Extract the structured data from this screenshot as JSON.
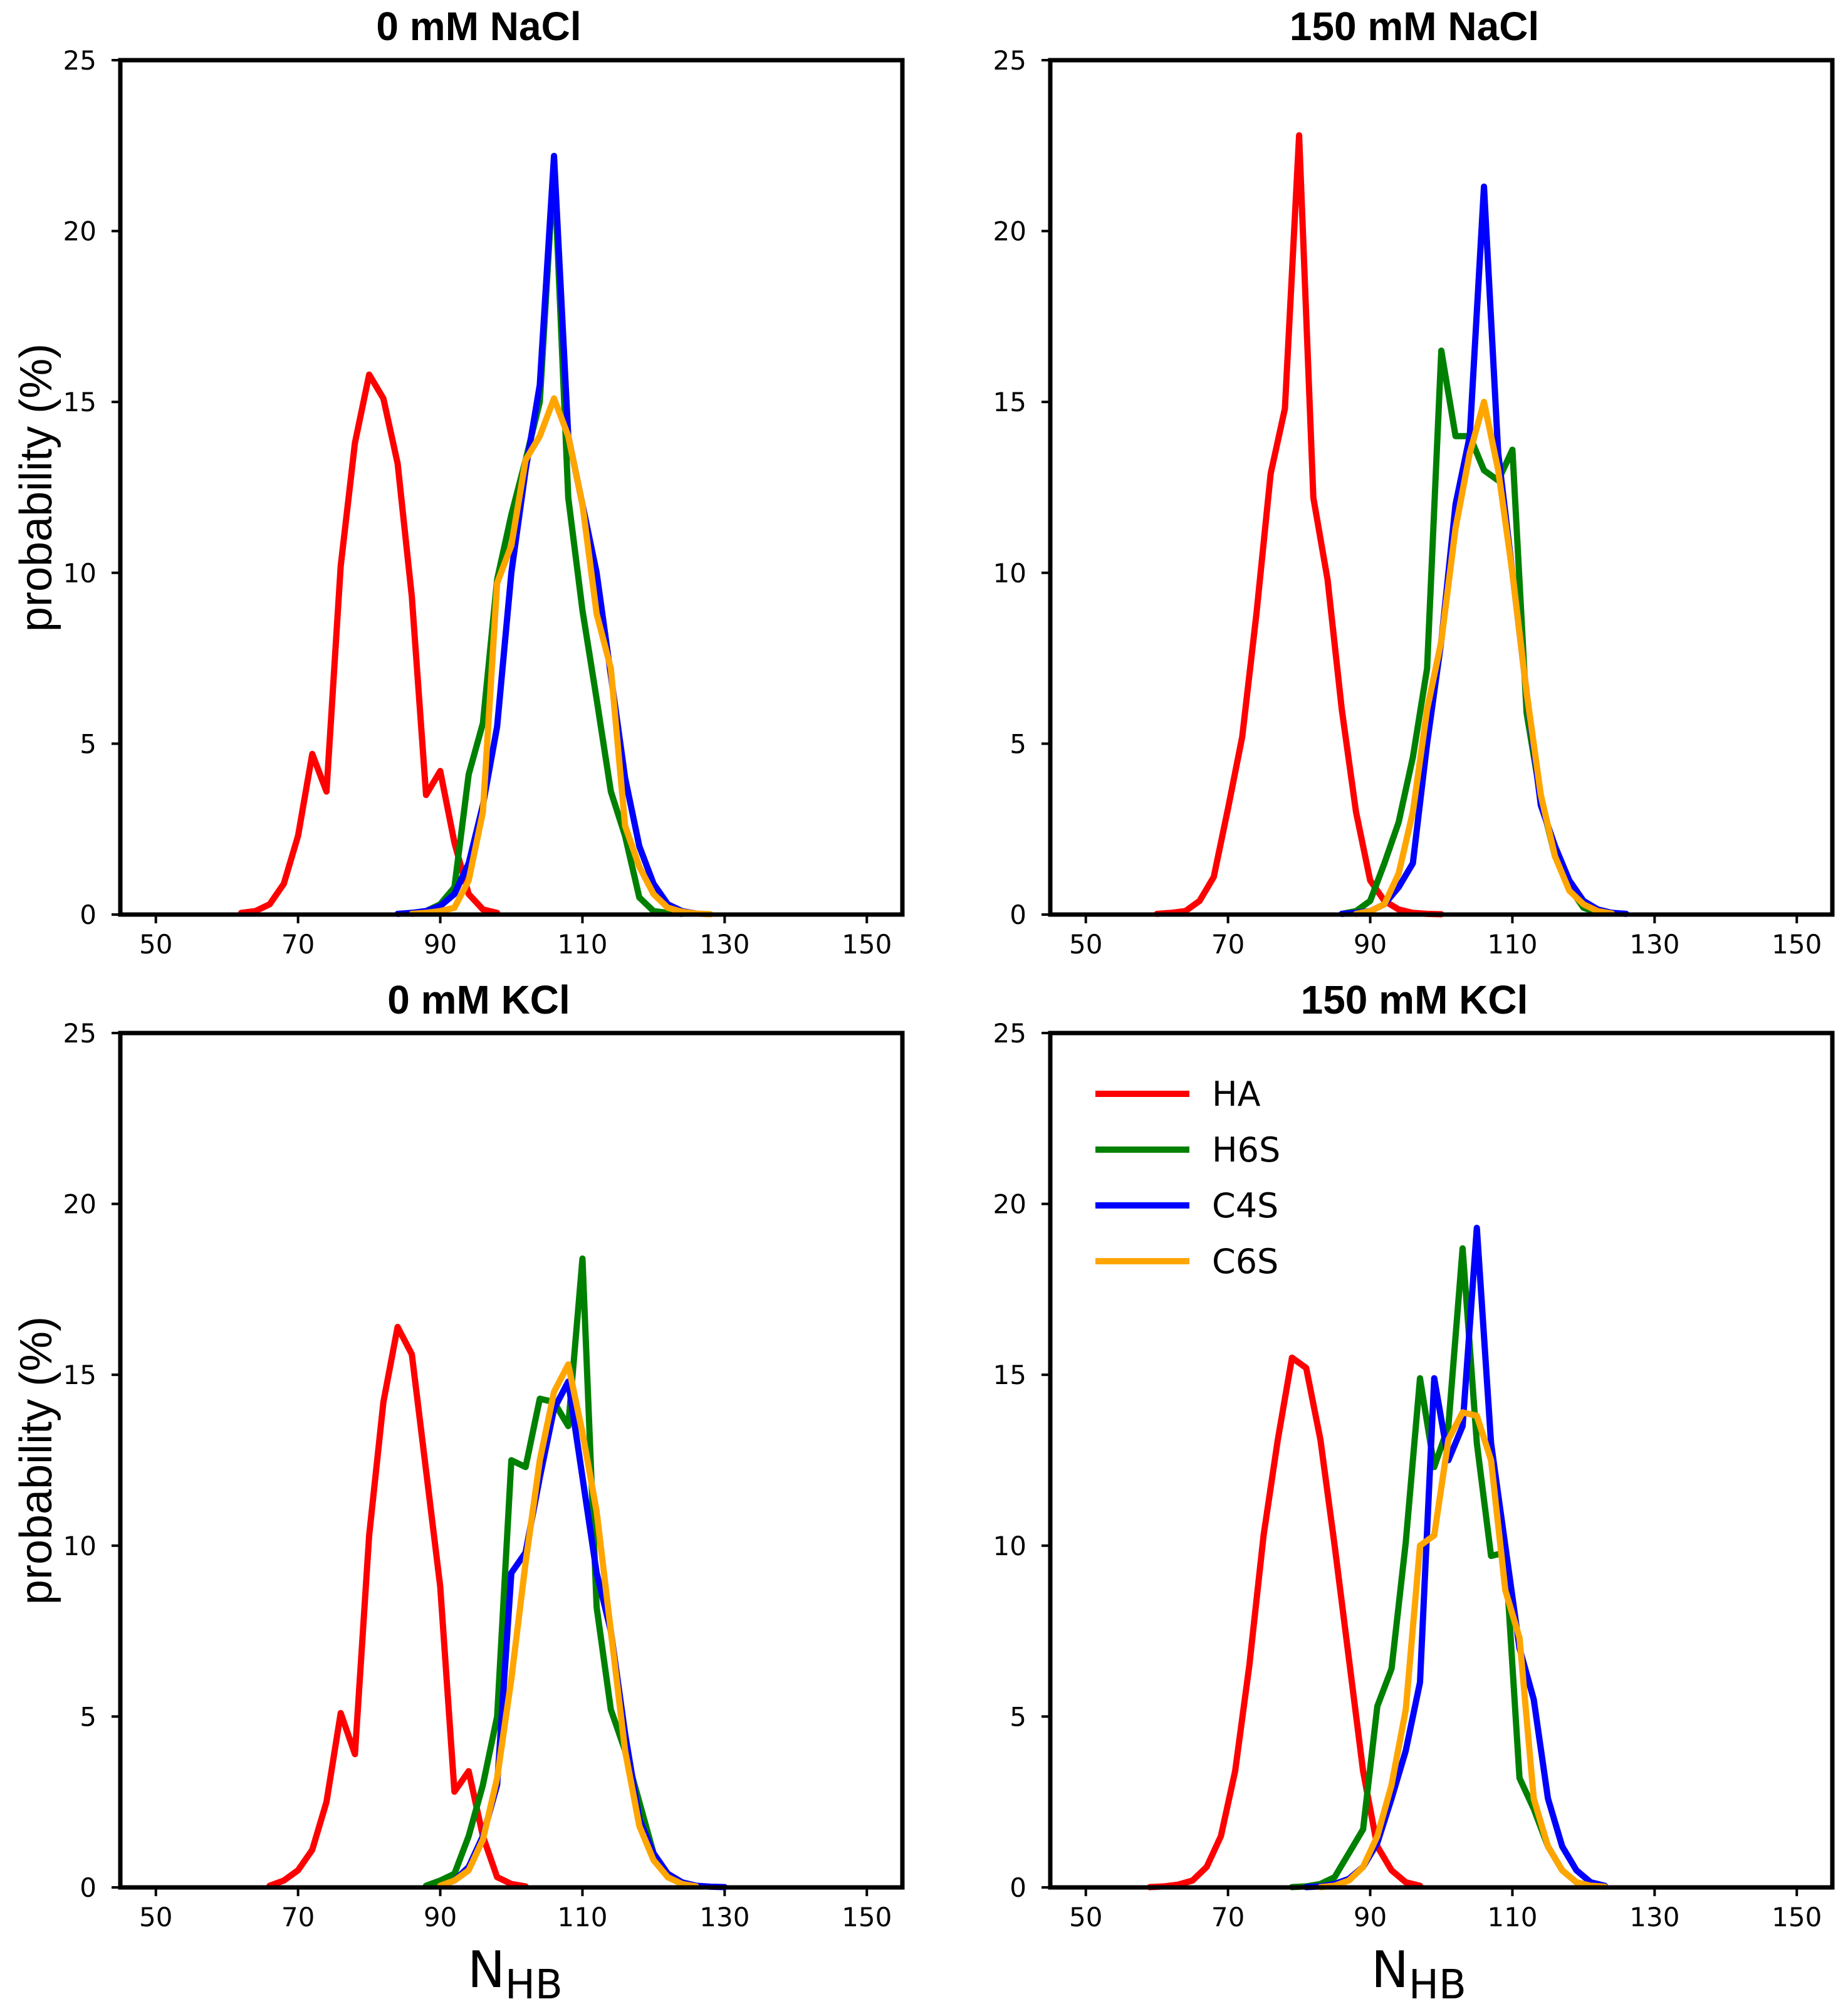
{
  "chart_data": [
    {
      "type": "line",
      "title": "0 mM NaCl",
      "xlabel": "",
      "ylabel": "probability (%)",
      "xlim": [
        45,
        155
      ],
      "ylim": [
        0,
        25
      ],
      "xticks": [
        "50",
        "70",
        "90",
        "110",
        "130",
        "150"
      ],
      "yticks": [
        "0",
        "5",
        "10",
        "15",
        "20",
        "25"
      ],
      "series": [
        {
          "name": "HA",
          "color": "#ff0000",
          "x": [
            62,
            64,
            66,
            68,
            70,
            72,
            74,
            76,
            78,
            80,
            82,
            84,
            86,
            88,
            90,
            92,
            94,
            96,
            98
          ],
          "y": [
            0.05,
            0.1,
            0.3,
            0.9,
            2.3,
            4.7,
            3.6,
            10.2,
            13.8,
            15.8,
            15.1,
            13.2,
            9.3,
            3.5,
            4.2,
            2.1,
            0.6,
            0.15,
            0.05
          ]
        },
        {
          "name": "H6S",
          "color": "#008000",
          "x": [
            86,
            88,
            90,
            92,
            94,
            96,
            98,
            100,
            102,
            104,
            106,
            108,
            110,
            112,
            114,
            116,
            118,
            120,
            122,
            124
          ],
          "y": [
            0.05,
            0.1,
            0.3,
            0.8,
            4.1,
            5.6,
            9.8,
            11.7,
            13.3,
            15.0,
            22.0,
            12.2,
            8.9,
            6.3,
            3.6,
            2.3,
            0.5,
            0.1,
            0.05,
            0.02
          ]
        },
        {
          "name": "C4S",
          "color": "#0000ff",
          "x": [
            84,
            86,
            88,
            90,
            92,
            94,
            96,
            98,
            100,
            102,
            104,
            106,
            108,
            110,
            112,
            114,
            116,
            118,
            120,
            122,
            124,
            126
          ],
          "y": [
            0.02,
            0.05,
            0.1,
            0.25,
            0.6,
            1.5,
            3.2,
            5.5,
            10.0,
            13.0,
            15.5,
            22.2,
            14.0,
            12.0,
            10.0,
            7.0,
            4.0,
            2.0,
            0.9,
            0.3,
            0.1,
            0.03
          ]
        },
        {
          "name": "C6S",
          "color": "#ffa500",
          "x": [
            86,
            88,
            90,
            92,
            94,
            96,
            98,
            100,
            102,
            104,
            106,
            108,
            110,
            112,
            114,
            116,
            118,
            120,
            122,
            124,
            126,
            128
          ],
          "y": [
            0.02,
            0.05,
            0.1,
            0.2,
            1.0,
            3.0,
            9.7,
            10.8,
            13.3,
            14.0,
            15.1,
            14.0,
            12.0,
            8.8,
            7.2,
            2.6,
            1.4,
            0.6,
            0.2,
            0.08,
            0.03,
            0.01
          ]
        }
      ]
    },
    {
      "type": "line",
      "title": "150 mM NaCl",
      "xlabel": "",
      "ylabel": "",
      "xlim": [
        45,
        155
      ],
      "ylim": [
        0,
        25
      ],
      "xticks": [
        "50",
        "70",
        "90",
        "110",
        "130",
        "150"
      ],
      "yticks": [
        "0",
        "5",
        "10",
        "15",
        "20",
        "25"
      ],
      "series": [
        {
          "name": "HA",
          "color": "#ff0000",
          "x": [
            60,
            62,
            64,
            66,
            68,
            70,
            72,
            74,
            76,
            78,
            80,
            82,
            84,
            86,
            88,
            90,
            92,
            94,
            96,
            98,
            100
          ],
          "y": [
            0.02,
            0.05,
            0.1,
            0.4,
            1.1,
            3.1,
            5.2,
            8.8,
            12.9,
            14.8,
            22.8,
            12.2,
            9.8,
            6.0,
            3.0,
            1.0,
            0.4,
            0.15,
            0.05,
            0.02,
            0.01
          ]
        },
        {
          "name": "H6S",
          "color": "#008000",
          "x": [
            86,
            88,
            90,
            92,
            94,
            96,
            98,
            100,
            102,
            104,
            106,
            108,
            110,
            112,
            114,
            116,
            118,
            120,
            122
          ],
          "y": [
            0.02,
            0.1,
            0.4,
            1.5,
            2.7,
            4.6,
            7.2,
            16.5,
            14.0,
            14.0,
            13.0,
            12.7,
            13.6,
            5.9,
            3.4,
            1.7,
            0.8,
            0.2,
            0.05
          ]
        },
        {
          "name": "C4S",
          "color": "#0000ff",
          "x": [
            86,
            88,
            90,
            92,
            94,
            96,
            98,
            100,
            102,
            104,
            106,
            108,
            110,
            112,
            114,
            116,
            118,
            120,
            122,
            124,
            126
          ],
          "y": [
            0.02,
            0.05,
            0.1,
            0.3,
            0.8,
            1.5,
            5.0,
            8.0,
            12.0,
            14.0,
            21.3,
            13.5,
            10.0,
            6.5,
            3.2,
            2.0,
            1.0,
            0.4,
            0.15,
            0.05,
            0.02
          ]
        },
        {
          "name": "C6S",
          "color": "#ffa500",
          "x": [
            88,
            90,
            92,
            94,
            96,
            98,
            100,
            102,
            104,
            106,
            108,
            110,
            112,
            114,
            116,
            118,
            120,
            122,
            124
          ],
          "y": [
            0.02,
            0.1,
            0.3,
            1.2,
            3.0,
            6.0,
            8.0,
            11.3,
            13.5,
            15.0,
            13.0,
            10.0,
            6.5,
            3.5,
            1.7,
            0.7,
            0.3,
            0.1,
            0.03
          ]
        }
      ]
    },
    {
      "type": "line",
      "title": "0 mM KCl",
      "xlabel": "N",
      "xlabel_sub": "HB",
      "ylabel": "probability (%)",
      "xlim": [
        45,
        155
      ],
      "ylim": [
        0,
        25
      ],
      "xticks": [
        "50",
        "70",
        "90",
        "110",
        "130",
        "150"
      ],
      "yticks": [
        "0",
        "5",
        "10",
        "15",
        "20",
        "25"
      ],
      "series": [
        {
          "name": "HA",
          "color": "#ff0000",
          "x": [
            66,
            68,
            70,
            72,
            74,
            76,
            78,
            80,
            82,
            84,
            86,
            88,
            90,
            92,
            94,
            96,
            98,
            100,
            102
          ],
          "y": [
            0.05,
            0.2,
            0.5,
            1.1,
            2.5,
            5.1,
            3.9,
            10.3,
            14.2,
            16.4,
            15.6,
            12.2,
            8.8,
            2.8,
            3.4,
            1.5,
            0.3,
            0.1,
            0.03
          ]
        },
        {
          "name": "H6S",
          "color": "#008000",
          "x": [
            88,
            90,
            92,
            94,
            96,
            98,
            100,
            102,
            104,
            106,
            108,
            110,
            112,
            114,
            116,
            118,
            120,
            122,
            124,
            126
          ],
          "y": [
            0.05,
            0.2,
            0.4,
            1.5,
            3.0,
            5.0,
            12.5,
            12.3,
            14.3,
            14.2,
            13.5,
            18.4,
            8.2,
            5.2,
            4.0,
            2.5,
            1.0,
            0.3,
            0.1,
            0.03
          ]
        },
        {
          "name": "C4S",
          "color": "#0000ff",
          "x": [
            90,
            92,
            94,
            96,
            98,
            100,
            102,
            104,
            106,
            108,
            110,
            112,
            114,
            116,
            118,
            120,
            122,
            124,
            126,
            128,
            130
          ],
          "y": [
            0.05,
            0.2,
            0.6,
            1.5,
            3.0,
            9.2,
            9.8,
            12.0,
            14.0,
            14.8,
            12.0,
            9.2,
            7.5,
            4.5,
            2.0,
            1.0,
            0.4,
            0.15,
            0.05,
            0.02,
            0.01
          ]
        },
        {
          "name": "C6S",
          "color": "#ffa500",
          "x": [
            90,
            92,
            94,
            96,
            98,
            100,
            102,
            104,
            106,
            108,
            110,
            112,
            114,
            116,
            118,
            120,
            122,
            124,
            126
          ],
          "y": [
            0.05,
            0.2,
            0.5,
            1.4,
            3.2,
            6.1,
            9.5,
            12.5,
            14.5,
            15.3,
            13.3,
            11.0,
            7.5,
            4.0,
            1.8,
            0.8,
            0.3,
            0.1,
            0.03
          ]
        }
      ]
    },
    {
      "type": "line",
      "title": "150 mM KCl",
      "xlabel": "N",
      "xlabel_sub": "HB",
      "ylabel": "",
      "xlim": [
        45,
        155
      ],
      "ylim": [
        0,
        25
      ],
      "xticks": [
        "50",
        "70",
        "90",
        "110",
        "130",
        "150"
      ],
      "yticks": [
        "0",
        "5",
        "10",
        "15",
        "20",
        "25"
      ],
      "legend": {
        "location": "upper-left",
        "entries": [
          "HA",
          "H6S",
          "C4S",
          "C6S"
        ]
      },
      "series": [
        {
          "name": "HA",
          "color": "#ff0000",
          "x": [
            59,
            61,
            63,
            65,
            67,
            69,
            71,
            73,
            75,
            77,
            79,
            81,
            83,
            85,
            87,
            89,
            91,
            93,
            95,
            97
          ],
          "y": [
            0.01,
            0.03,
            0.08,
            0.2,
            0.6,
            1.5,
            3.4,
            6.5,
            10.3,
            13.1,
            15.5,
            15.2,
            13.1,
            10.0,
            6.7,
            3.4,
            1.2,
            0.5,
            0.15,
            0.05
          ]
        },
        {
          "name": "H6S",
          "color": "#008000",
          "x": [
            79,
            81,
            83,
            85,
            87,
            89,
            91,
            93,
            95,
            97,
            99,
            101,
            103,
            105,
            107,
            109,
            111,
            113,
            115,
            117,
            119,
            121
          ],
          "y": [
            0.01,
            0.03,
            0.1,
            0.3,
            1.0,
            1.7,
            5.3,
            6.4,
            10.1,
            14.9,
            12.3,
            13.5,
            18.7,
            13.0,
            9.7,
            9.8,
            3.2,
            2.3,
            1.2,
            0.5,
            0.15,
            0.05
          ]
        },
        {
          "name": "C4S",
          "color": "#0000ff",
          "x": [
            81,
            83,
            85,
            87,
            89,
            91,
            93,
            95,
            97,
            99,
            101,
            103,
            105,
            107,
            109,
            111,
            113,
            115,
            117,
            119,
            121,
            123
          ],
          "y": [
            0.01,
            0.03,
            0.1,
            0.25,
            0.6,
            1.3,
            2.6,
            4.0,
            6.0,
            14.9,
            12.5,
            13.5,
            19.3,
            13.0,
            10.0,
            7.0,
            5.5,
            2.6,
            1.2,
            0.5,
            0.15,
            0.05
          ]
        },
        {
          "name": "C6S",
          "color": "#ffa500",
          "x": [
            83,
            85,
            87,
            89,
            91,
            93,
            95,
            97,
            99,
            101,
            103,
            105,
            107,
            109,
            111,
            113,
            115,
            117,
            119,
            121,
            123
          ],
          "y": [
            0.01,
            0.05,
            0.2,
            0.6,
            1.5,
            3.0,
            5.2,
            10.0,
            10.3,
            13.1,
            13.9,
            13.8,
            12.5,
            8.7,
            7.3,
            2.6,
            1.2,
            0.5,
            0.15,
            0.05,
            0.02
          ]
        }
      ]
    }
  ]
}
